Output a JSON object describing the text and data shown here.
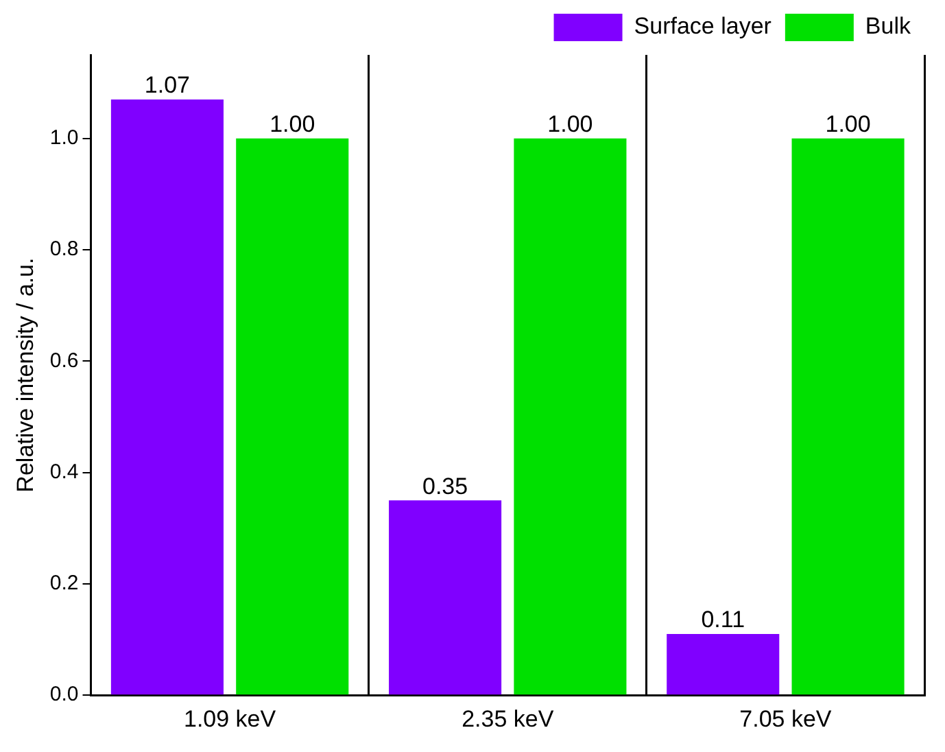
{
  "chart_data": {
    "type": "bar",
    "ylabel": "Relative intensity / a.u.",
    "categories": [
      "1.09 keV",
      "2.35 keV",
      "7.05 keV"
    ],
    "series": [
      {
        "name": "Surface layer",
        "color": "#8000ff",
        "values": [
          1.07,
          0.35,
          0.11
        ],
        "value_labels": [
          "1.07",
          "0.35",
          "0.11"
        ]
      },
      {
        "name": "Bulk",
        "color": "#00e000",
        "values": [
          1.0,
          1.0,
          1.0
        ],
        "value_labels": [
          "1.00",
          "1.00",
          "1.00"
        ]
      }
    ],
    "ylim": [
      0,
      1.15
    ],
    "yticks": [
      {
        "value": 0,
        "label": "0.0"
      },
      {
        "value": 0.2,
        "label": "0.2"
      },
      {
        "value": 0.4,
        "label": "0.4"
      },
      {
        "value": 0.6,
        "label": "0.6"
      },
      {
        "value": 0.8,
        "label": "0.8"
      },
      {
        "value": 1.0,
        "label": "1.0"
      }
    ],
    "grid": "x",
    "legend": "top right"
  }
}
